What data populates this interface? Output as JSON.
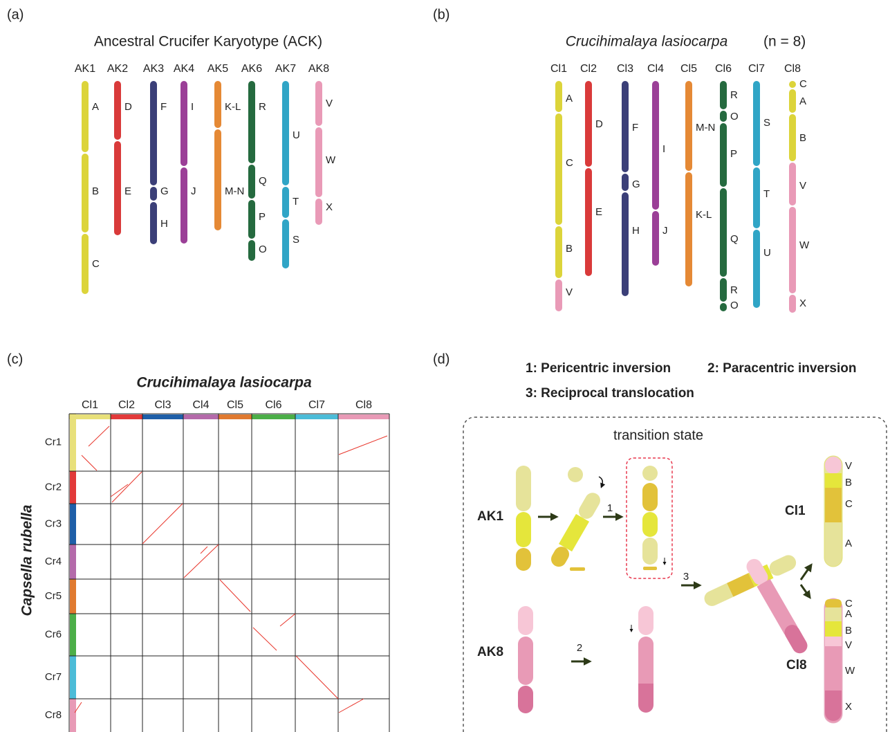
{
  "panel_a": {
    "label": "(a)",
    "title": "Ancestral Crucifer Karyotype (ACK)",
    "chromosomes": [
      {
        "name": "AK1",
        "segments": [
          "A",
          "B",
          "C"
        ]
      },
      {
        "name": "AK2",
        "segments": [
          "D",
          "E"
        ]
      },
      {
        "name": "AK3",
        "segments": [
          "F",
          "G",
          "H"
        ]
      },
      {
        "name": "AK4",
        "segments": [
          "I",
          "J"
        ]
      },
      {
        "name": "AK5",
        "segments": [
          "K-L",
          "M-N"
        ]
      },
      {
        "name": "AK6",
        "segments": [
          "R",
          "Q",
          "P",
          "O"
        ]
      },
      {
        "name": "AK7",
        "segments": [
          "U",
          "T",
          "S"
        ]
      },
      {
        "name": "AK8",
        "segments": [
          "V",
          "W",
          "X"
        ]
      }
    ]
  },
  "panel_b": {
    "label": "(b)",
    "title": "Crucihimalaya lasiocarpa",
    "title_suffix": "(n = 8)",
    "chromosomes": [
      {
        "name": "Cl1",
        "segments": [
          "A",
          "C",
          "B",
          "V"
        ]
      },
      {
        "name": "Cl2",
        "segments": [
          "D",
          "E"
        ]
      },
      {
        "name": "Cl3",
        "segments": [
          "F",
          "G",
          "H"
        ]
      },
      {
        "name": "Cl4",
        "segments": [
          "I",
          "J"
        ]
      },
      {
        "name": "Cl5",
        "segments": [
          "M-N",
          "K-L"
        ]
      },
      {
        "name": "Cl6",
        "segments": [
          "R",
          "O",
          "P",
          "Q",
          "R",
          "O"
        ]
      },
      {
        "name": "Cl7",
        "segments": [
          "S",
          "T",
          "U"
        ]
      },
      {
        "name": "Cl8",
        "segments": [
          "C",
          "A",
          "B",
          "V",
          "W",
          "X"
        ]
      }
    ]
  },
  "panel_c": {
    "label": "(c)",
    "x_title": "Crucihimalaya lasiocarpa",
    "y_title": "Capsella rubella",
    "columns": [
      "Cl1",
      "Cl2",
      "Cl3",
      "Cl4",
      "Cl5",
      "Cl6",
      "Cl7",
      "Cl8"
    ],
    "rows": [
      "Cr1",
      "Cr2",
      "Cr3",
      "Cr4",
      "Cr5",
      "Cr6",
      "Cr7",
      "Cr8"
    ]
  },
  "panel_d": {
    "label": "(d)",
    "legend": [
      "1: Pericentric inversion",
      "2: Paracentric inversion",
      "3: Reciprocal translocation"
    ],
    "box_title": "transition state",
    "steps": [
      "1",
      "2",
      "3"
    ],
    "ancestral": [
      "AK1",
      "AK8"
    ],
    "derived": [
      {
        "name": "Cl1",
        "segments": [
          "V",
          "B",
          "C",
          "A"
        ]
      },
      {
        "name": "Cl8",
        "segments": [
          "C",
          "A",
          "B",
          "V",
          "W",
          "X"
        ]
      }
    ]
  }
}
